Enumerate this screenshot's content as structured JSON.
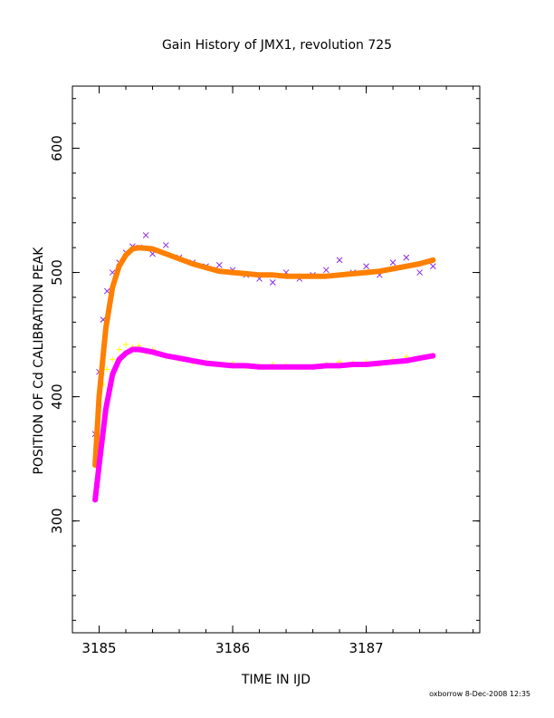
{
  "chart_data": {
    "type": "scatter",
    "title": "Gain History of JMX1, revolution 725",
    "xlabel": "TIME IN IJD",
    "ylabel": "POSITION OF Cd CALIBRATION PEAK",
    "xlim": [
      3184.8,
      3187.85
    ],
    "ylim": [
      210,
      650
    ],
    "x_ticks": [
      3185,
      3186,
      3187
    ],
    "y_ticks": [
      300,
      400,
      500,
      600
    ],
    "grid": false,
    "legend": "none",
    "footer": "oxborrow  8-Dec-2008 12:35",
    "series": [
      {
        "marker": "x",
        "color": "#8a2be2",
        "x": [
          3184.97,
          3185.0,
          3185.03,
          3185.06,
          3185.1,
          3185.15,
          3185.2,
          3185.25,
          3185.3,
          3185.35,
          3185.4,
          3185.5,
          3185.6,
          3185.7,
          3185.8,
          3185.9,
          3186.0,
          3186.1,
          3186.2,
          3186.3,
          3186.4,
          3186.5,
          3186.6,
          3186.7,
          3186.8,
          3186.9,
          3187.0,
          3187.1,
          3187.2,
          3187.3,
          3187.4,
          3187.5
        ],
        "y": [
          370,
          420,
          462,
          485,
          500,
          508,
          516,
          521,
          520,
          530,
          515,
          522,
          512,
          508,
          505,
          506,
          502,
          498,
          495,
          492,
          500,
          495,
          498,
          502,
          510,
          500,
          505,
          498,
          508,
          512,
          500,
          505
        ]
      },
      {
        "marker": "+",
        "color": "#ffff00",
        "x": [
          3184.97,
          3185.0,
          3185.03,
          3185.06,
          3185.1,
          3185.15,
          3185.2,
          3185.25,
          3185.3,
          3185.35,
          3185.4,
          3185.5,
          3185.6,
          3185.7,
          3185.8,
          3185.9,
          3186.0,
          3186.1,
          3186.2,
          3186.3,
          3186.4,
          3186.5,
          3186.6,
          3186.7,
          3186.8,
          3186.9,
          3187.0,
          3187.1,
          3187.2,
          3187.3,
          3187.4,
          3187.5
        ],
        "y": [
          345,
          388,
          410,
          422,
          430,
          438,
          442,
          440,
          441,
          436,
          438,
          432,
          430,
          428,
          428,
          426,
          427,
          424,
          425,
          426,
          425,
          424,
          424,
          426,
          428,
          427,
          428,
          426,
          430,
          432,
          431,
          432
        ]
      },
      {
        "marker": "line",
        "color": "#ff7f00",
        "x": [
          3184.97,
          3185.0,
          3185.05,
          3185.1,
          3185.15,
          3185.2,
          3185.25,
          3185.3,
          3185.4,
          3185.5,
          3185.6,
          3185.7,
          3185.8,
          3185.9,
          3186.0,
          3186.1,
          3186.2,
          3186.3,
          3186.4,
          3186.5,
          3186.6,
          3186.7,
          3186.8,
          3186.9,
          3187.0,
          3187.1,
          3187.2,
          3187.3,
          3187.4,
          3187.5
        ],
        "y": [
          345,
          400,
          455,
          488,
          505,
          514,
          519,
          520,
          519,
          515,
          511,
          507,
          504,
          501,
          500,
          499,
          498,
          498,
          497,
          497,
          497,
          497,
          498,
          499,
          500,
          501,
          503,
          505,
          507,
          510
        ]
      },
      {
        "marker": "line",
        "color": "#ff00ff",
        "x": [
          3184.97,
          3185.0,
          3185.05,
          3185.1,
          3185.15,
          3185.2,
          3185.25,
          3185.3,
          3185.4,
          3185.5,
          3185.6,
          3185.7,
          3185.8,
          3185.9,
          3186.0,
          3186.1,
          3186.2,
          3186.3,
          3186.4,
          3186.5,
          3186.6,
          3186.7,
          3186.8,
          3186.9,
          3187.0,
          3187.1,
          3187.2,
          3187.3,
          3187.4,
          3187.5
        ],
        "y": [
          317,
          345,
          390,
          418,
          430,
          435,
          438,
          438,
          436,
          433,
          431,
          429,
          427,
          426,
          425,
          425,
          424,
          424,
          424,
          424,
          424,
          425,
          425,
          426,
          426,
          427,
          428,
          429,
          431,
          433
        ]
      }
    ]
  }
}
